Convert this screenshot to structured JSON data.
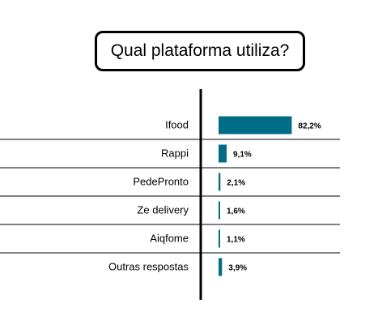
{
  "chart_data": {
    "type": "bar",
    "orientation": "horizontal",
    "title": "Qual plataforma utiliza?",
    "categories": [
      "Ifood",
      "Rappi",
      "PedePronto",
      "Ze delivery",
      "Aiqfome",
      "Outras respostas"
    ],
    "values": [
      82.2,
      9.1,
      2.1,
      1.6,
      1.1,
      3.9
    ],
    "value_labels": [
      "82,2%",
      "9,1%",
      "2,1%",
      "1,6%",
      "1,1%",
      "3,9%"
    ],
    "unit": "%",
    "xlim": [
      0,
      100
    ],
    "bar_color": "#006d86",
    "grid": false,
    "legend": "none"
  }
}
